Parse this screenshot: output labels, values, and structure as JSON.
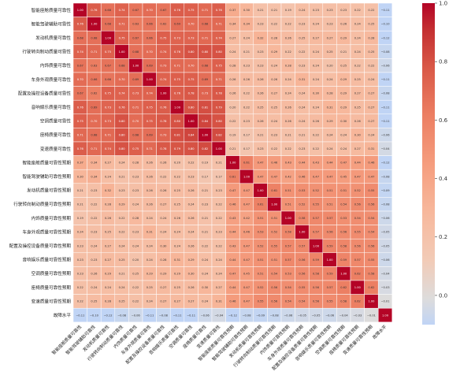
{
  "chart_data": {
    "type": "heatmap",
    "title": "",
    "labels": [
      "智能座舱质量可靠性",
      "智能驾驶辅助可靠性",
      "发动机质量可靠性",
      "行驶转向制动质量可靠性",
      "内饰质量可靠性",
      "车身外观质量可靠性",
      "配置及操控设备质量可靠性",
      "音响娱乐质量可靠性",
      "空调质量可靠性",
      "座椅质量可靠性",
      "变速质量可靠性",
      "智能座舱质量可靠性预期",
      "智能驾驶辅助可靠性预期",
      "发动机质量可靠性预期",
      "行驶转向制动质量可靠性预期",
      "内饰质量可靠性预期",
      "车身外观质量可靠性预期",
      "配置及操控设备质量可靠性预期",
      "音响娱乐质量可靠性预期",
      "空调质量可靠性预期",
      "座椅质量可靠性预期",
      "变速质量可靠性预期",
      "故障水平"
    ],
    "colorbar": {
      "min": -0.1,
      "max": 1.0,
      "ticks": [
        "1.0",
        "0.8",
        "0.6",
        "0.4",
        "0.2",
        "0.0"
      ]
    },
    "colormap": "coolwarm",
    "matrix": [
      [
        1.0,
        0.76,
        0.68,
        0.74,
        0.67,
        0.7,
        0.67,
        0.76,
        0.75,
        0.71,
        0.76,
        0.37,
        0.3,
        0.21,
        0.21,
        0.19,
        0.24,
        0.23,
        0.23,
        0.23,
        0.22,
        0.22,
        -0.11
      ],
      [
        0.76,
        1.0,
        0.68,
        0.71,
        0.63,
        0.66,
        0.62,
        0.69,
        0.7,
        0.68,
        0.71,
        0.34,
        0.34,
        0.23,
        0.22,
        0.22,
        0.23,
        0.24,
        0.23,
        0.26,
        0.24,
        0.25,
        -0.1
      ],
      [
        0.68,
        0.68,
        1.0,
        0.75,
        0.67,
        0.66,
        0.75,
        0.73,
        0.73,
        0.71,
        0.74,
        0.27,
        0.24,
        0.32,
        0.28,
        0.26,
        0.25,
        0.27,
        0.27,
        0.29,
        0.24,
        0.28,
        -0.12
      ],
      [
        0.74,
        0.71,
        0.75,
        1.0,
        0.68,
        0.7,
        0.74,
        0.76,
        0.8,
        0.8,
        0.8,
        0.24,
        0.21,
        0.23,
        0.29,
        0.22,
        0.22,
        0.24,
        0.25,
        0.21,
        0.24,
        0.25,
        -0.08
      ],
      [
        0.67,
        0.63,
        0.67,
        0.68,
        1.0,
        0.69,
        0.73,
        0.71,
        0.7,
        0.68,
        0.75,
        0.28,
        0.23,
        0.23,
        0.24,
        0.28,
        0.23,
        0.24,
        0.2,
        0.25,
        0.22,
        0.22,
        -0.06
      ],
      [
        0.7,
        0.66,
        0.66,
        0.7,
        0.69,
        1.0,
        0.74,
        0.75,
        0.75,
        0.69,
        0.71,
        0.26,
        0.26,
        0.26,
        0.26,
        0.24,
        0.31,
        0.24,
        0.24,
        0.29,
        0.25,
        0.24,
        -0.11
      ],
      [
        0.67,
        0.62,
        0.75,
        0.74,
        0.73,
        0.74,
        1.0,
        0.76,
        0.78,
        0.73,
        0.78,
        0.26,
        0.22,
        0.26,
        0.27,
        0.24,
        0.24,
        0.3,
        0.28,
        0.29,
        0.27,
        0.27,
        -0.08
      ],
      [
        0.76,
        0.69,
        0.73,
        0.76,
        0.71,
        0.75,
        0.76,
        1.0,
        0.8,
        0.81,
        0.79,
        0.2,
        0.22,
        0.25,
        0.25,
        0.26,
        0.24,
        0.24,
        0.31,
        0.29,
        0.25,
        0.27,
        -0.11
      ],
      [
        0.75,
        0.7,
        0.73,
        0.8,
        0.7,
        0.75,
        0.78,
        0.8,
        1.0,
        0.84,
        0.8,
        0.22,
        0.23,
        0.26,
        0.24,
        0.26,
        0.24,
        0.26,
        0.29,
        0.3,
        0.26,
        0.27,
        -0.11
      ],
      [
        0.71,
        0.68,
        0.71,
        0.8,
        0.68,
        0.69,
        0.73,
        0.81,
        0.84,
        1.0,
        0.82,
        0.19,
        0.17,
        0.21,
        0.23,
        0.21,
        0.21,
        0.22,
        0.24,
        0.24,
        0.3,
        0.24,
        -0.06
      ],
      [
        0.76,
        0.71,
        0.74,
        0.8,
        0.75,
        0.71,
        0.78,
        0.79,
        0.8,
        0.82,
        1.0,
        0.21,
        0.17,
        0.23,
        0.22,
        0.22,
        0.23,
        0.22,
        0.24,
        0.24,
        0.27,
        0.31,
        -0.04
      ],
      [
        0.37,
        0.34,
        0.27,
        0.24,
        0.28,
        0.26,
        0.26,
        0.2,
        0.22,
        0.19,
        0.21,
        1.0,
        0.61,
        0.47,
        0.46,
        0.43,
        0.44,
        0.43,
        0.44,
        0.47,
        0.44,
        0.46,
        -0.12
      ],
      [
        0.3,
        0.34,
        0.24,
        0.21,
        0.23,
        0.26,
        0.22,
        0.22,
        0.23,
        0.17,
        0.17,
        0.61,
        1.0,
        0.47,
        0.47,
        0.42,
        0.46,
        0.47,
        0.47,
        0.45,
        0.47,
        0.47,
        -0.08
      ],
      [
        0.21,
        0.23,
        0.32,
        0.23,
        0.23,
        0.26,
        0.26,
        0.25,
        0.26,
        0.21,
        0.23,
        0.47,
        0.47,
        1.0,
        0.61,
        0.51,
        0.53,
        0.52,
        0.51,
        0.51,
        0.52,
        0.55,
        -0.09
      ],
      [
        0.21,
        0.22,
        0.28,
        0.29,
        0.24,
        0.26,
        0.27,
        0.25,
        0.24,
        0.23,
        0.22,
        0.46,
        0.47,
        0.61,
        1.0,
        0.51,
        0.52,
        0.55,
        0.51,
        0.54,
        0.56,
        0.56,
        -0.08
      ],
      [
        0.19,
        0.22,
        0.26,
        0.22,
        0.28,
        0.24,
        0.24,
        0.26,
        0.26,
        0.21,
        0.22,
        0.43,
        0.42,
        0.51,
        0.51,
        1.0,
        0.58,
        0.57,
        0.57,
        0.53,
        0.54,
        0.54,
        -0.06
      ],
      [
        0.24,
        0.23,
        0.25,
        0.22,
        0.23,
        0.31,
        0.24,
        0.24,
        0.24,
        0.21,
        0.23,
        0.44,
        0.46,
        0.53,
        0.52,
        0.58,
        1.0,
        0.57,
        0.56,
        0.56,
        0.55,
        0.54,
        -0.05
      ],
      [
        0.23,
        0.24,
        0.27,
        0.24,
        0.24,
        0.24,
        0.3,
        0.24,
        0.26,
        0.22,
        0.22,
        0.43,
        0.47,
        0.52,
        0.55,
        0.57,
        0.57,
        1.0,
        0.59,
        0.58,
        0.56,
        0.56,
        -0.05
      ],
      [
        0.23,
        0.23,
        0.27,
        0.25,
        0.2,
        0.24,
        0.28,
        0.31,
        0.29,
        0.24,
        0.24,
        0.44,
        0.47,
        0.51,
        0.51,
        0.57,
        0.56,
        0.59,
        1.0,
        0.59,
        0.57,
        0.55,
        -0.06
      ],
      [
        0.23,
        0.26,
        0.29,
        0.21,
        0.25,
        0.29,
        0.29,
        0.29,
        0.3,
        0.24,
        0.24,
        0.47,
        0.45,
        0.51,
        0.54,
        0.53,
        0.56,
        0.58,
        0.59,
        1.0,
        0.62,
        0.58,
        -0.04
      ],
      [
        0.22,
        0.24,
        0.24,
        0.24,
        0.22,
        0.25,
        0.27,
        0.25,
        0.26,
        0.3,
        0.27,
        0.44,
        0.47,
        0.52,
        0.56,
        0.54,
        0.55,
        0.56,
        0.57,
        0.62,
        1.0,
        0.62,
        -0.03
      ],
      [
        0.22,
        0.25,
        0.28,
        0.25,
        0.22,
        0.24,
        0.27,
        0.27,
        0.27,
        0.24,
        0.31,
        0.46,
        0.47,
        0.55,
        0.56,
        0.54,
        0.54,
        0.56,
        0.55,
        0.58,
        0.62,
        1.0,
        -0.01
      ],
      [
        -0.11,
        -0.1,
        -0.12,
        -0.08,
        -0.06,
        -0.11,
        -0.08,
        -0.11,
        -0.11,
        -0.06,
        -0.04,
        -0.12,
        -0.08,
        -0.09,
        -0.08,
        -0.06,
        -0.05,
        -0.05,
        -0.06,
        -0.04,
        -0.03,
        -0.01,
        1.0
      ]
    ]
  }
}
